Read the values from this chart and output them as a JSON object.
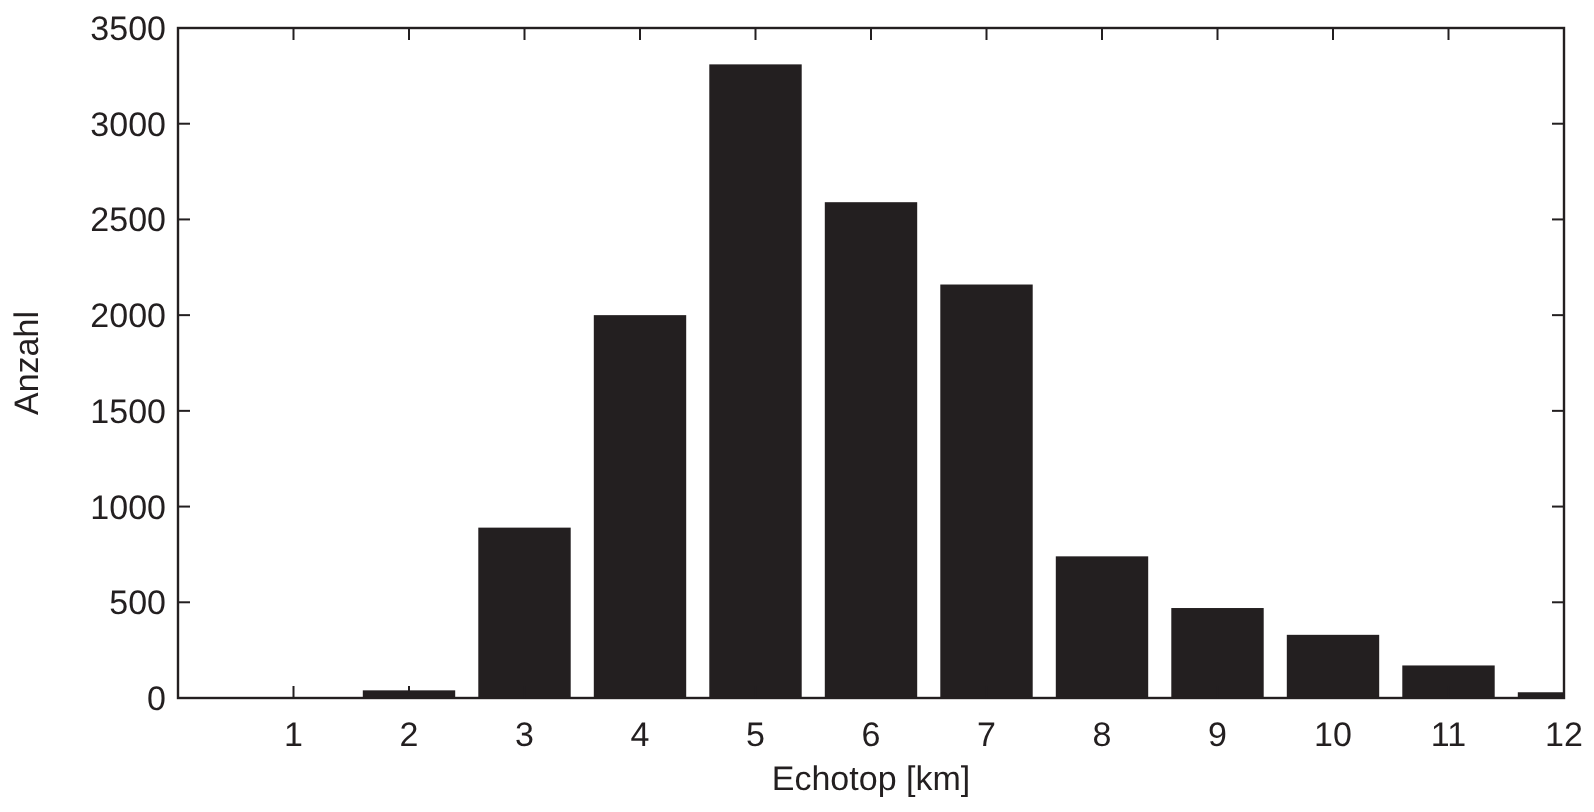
{
  "chart_data": {
    "type": "bar",
    "xlabel": "Echotop [km]",
    "ylabel": "Anzahl",
    "x": [
      1,
      2,
      3,
      4,
      5,
      6,
      7,
      8,
      9,
      10,
      11,
      12
    ],
    "values": [
      0,
      40,
      890,
      2000,
      3310,
      2590,
      2160,
      740,
      470,
      330,
      170,
      30
    ],
    "color": "#231f20",
    "xlim": [
      0,
      12
    ],
    "xticks": [
      1,
      2,
      3,
      4,
      5,
      6,
      7,
      8,
      9,
      10,
      11,
      12
    ],
    "ylim": [
      0,
      3500
    ],
    "yticks": [
      0,
      500,
      1000,
      1500,
      2000,
      2500,
      3000,
      3500
    ],
    "grid": false
  }
}
